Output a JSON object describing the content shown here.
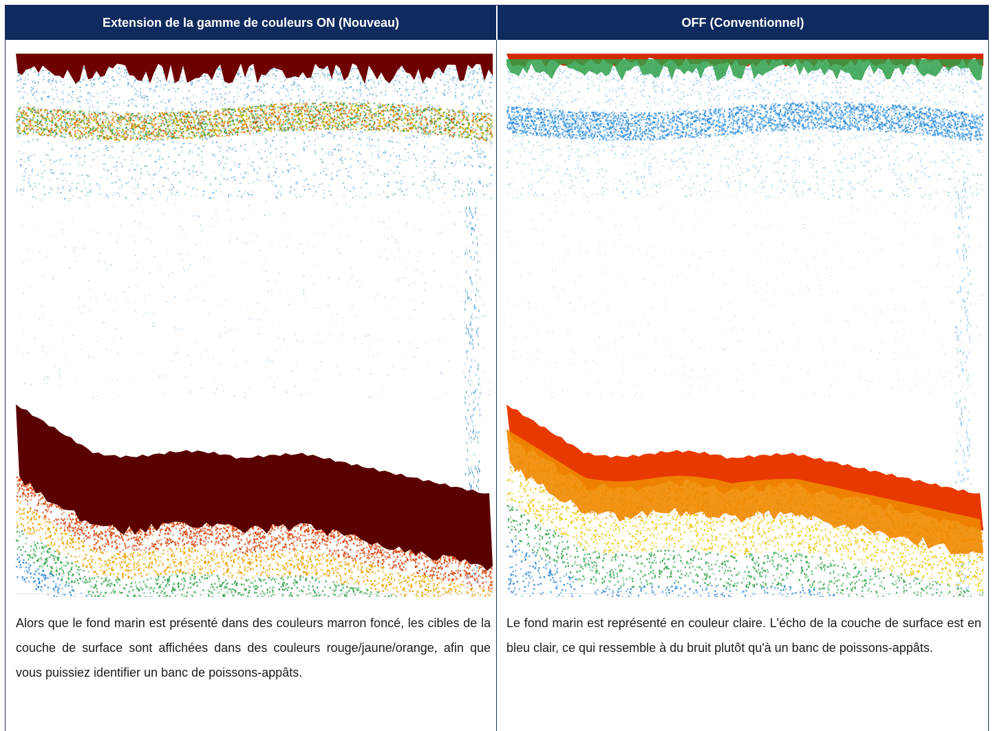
{
  "header": {
    "left_title": "Extension de la gamme de couleurs ON (Nouveau)",
    "right_title": "OFF (Conventionnel)"
  },
  "captions": {
    "left": "Alors que le fond marin est présenté dans des couleurs marron foncé, les cibles de la couche de surface sont affichées dans des couleurs rouge/jaune/orange, afin que vous puissiez identifier un banc de poissons-appâts.",
    "right": "Le fond marin est représenté en couleur claire. L'écho de la couche de surface est en bleu clair, ce qui ressemble à du bruit plutôt qu'à un banc de poissons-appâts."
  },
  "echograms": {
    "left": {
      "mode": "color-range-extension-on",
      "palette": {
        "surface_top": "#6e0000",
        "surface_band": [
          "#c8b400",
          "#2e9e4a",
          "#e05a00"
        ],
        "noise": "#3a8fd0",
        "seabed": "#5a0000",
        "seabed_fringe": [
          "#d43a00",
          "#e8a000",
          "#2fa04a",
          "#1e7fd6"
        ]
      }
    },
    "right": {
      "mode": "conventional",
      "palette": {
        "surface_top": "#d42a00",
        "surface_band": [
          "#1e7fd6",
          "#52a6e6"
        ],
        "noise": "#7ab8ea",
        "seabed": "#e83a00",
        "seabed_fringe": [
          "#f08a00",
          "#e8c400",
          "#2fa04a",
          "#1e7fd6"
        ]
      }
    }
  }
}
